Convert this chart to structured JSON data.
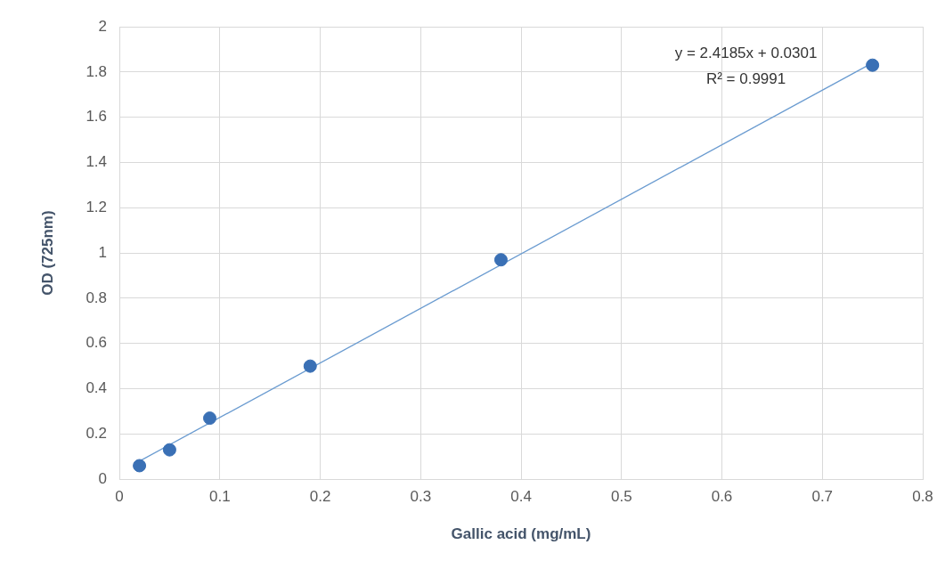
{
  "chart_data": {
    "type": "scatter",
    "xlabel": "Gallic acid (mg/mL)",
    "ylabel": "OD (725nm)",
    "annotations": [
      "y = 2.4185x + 0.0301",
      "R² = 0.9991"
    ],
    "series": [
      {
        "type": "scatter",
        "marker": "circle",
        "color": "#3a70b5",
        "x": [
          0.02,
          0.05,
          0.09,
          0.19,
          0.38,
          0.75
        ],
        "values": [
          0.06,
          0.13,
          0.27,
          0.5,
          0.97,
          1.83
        ]
      },
      {
        "type": "line",
        "marker": "none",
        "color": "#6a9bd0",
        "x": [
          0.02,
          0.75
        ],
        "values": [
          0.08,
          1.84
        ]
      }
    ],
    "xlim": [
      0,
      0.8
    ],
    "xticks": [
      0,
      0.1,
      0.2,
      0.3,
      0.4,
      0.5,
      0.6,
      0.7,
      0.8
    ],
    "ylim": [
      0,
      2
    ],
    "yticks": [
      0,
      0.2,
      0.4,
      0.6,
      0.8,
      1,
      1.2,
      1.4,
      1.6,
      1.8,
      2
    ],
    "grid": true,
    "legend": false
  }
}
